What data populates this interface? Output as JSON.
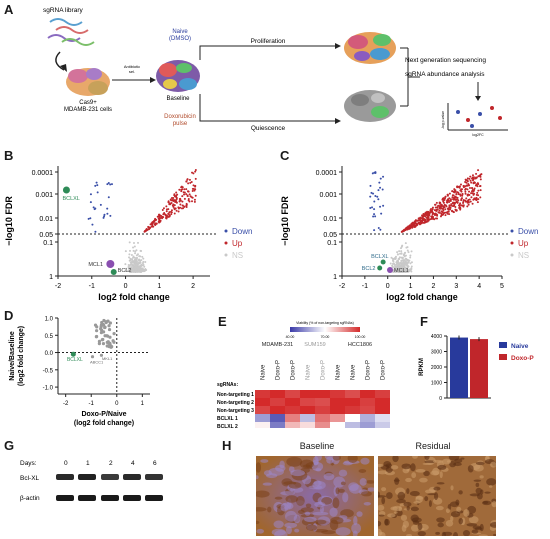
{
  "panels": {
    "A": "A",
    "B": "B",
    "C": "C",
    "D": "D",
    "E": "E",
    "F": "F",
    "G": "G",
    "H": "H"
  },
  "panel_a": {
    "library": "sgRNA library",
    "cells": "Cas9+\nMDAMB-231 cells",
    "antibiotic": "Antibiotic\nsel.",
    "baseline": "Baseline",
    "naive": "Naive\n(DMSO)",
    "doxo": "Doxorubicin\npulse",
    "proliferation": "Proliferation",
    "quiescence": "Quiescence",
    "ngs": "Next generation sequencing",
    "abundance": "sgRNA abundance analysis",
    "mini_ylabel": "-log p-value",
    "mini_xlabel": "log2FC"
  },
  "colors": {
    "down": "#3a4fa8",
    "up": "#c0262b",
    "ns": "#c9c9c9",
    "highlight": "#2e8b57",
    "mcl1": "#8a4fb0",
    "bclxl_green": "#3a8a5a",
    "naive_bar": "#283a9c",
    "doxop_bar": "#c0262b"
  },
  "chart_data": [
    {
      "id": "B",
      "type": "scatter",
      "xlabel": "log2 fold change",
      "ylabel": "−log10 FDR",
      "xlim": [
        -2,
        2.5
      ],
      "x_ticks": [
        "-2",
        "-1",
        "0",
        "1",
        "2"
      ],
      "y_ticks": [
        "0.0001",
        "0.001",
        "0.01",
        "0.05",
        "0.1",
        "1"
      ],
      "y_scale": "log",
      "threshold_label": "0.05",
      "legend": [
        "Down",
        "Up",
        "NS"
      ],
      "annotations": [
        "BCLXL",
        "MCL1",
        "BCL2"
      ]
    },
    {
      "id": "C",
      "type": "scatter",
      "xlabel": "log2 fold change",
      "ylabel": "−log10 FDR",
      "xlim": [
        -2,
        5
      ],
      "x_ticks": [
        "-2",
        "-1",
        "0",
        "1",
        "2",
        "3",
        "4",
        "5"
      ],
      "y_ticks": [
        "0.0001",
        "0.001",
        "0.01",
        "0.05",
        "0.1",
        "1"
      ],
      "y_scale": "log",
      "legend": [
        "Down",
        "Up",
        "NS"
      ],
      "annotations": [
        "BCLXL",
        "BCL2",
        "MCL1"
      ]
    },
    {
      "id": "D",
      "type": "scatter",
      "xlabel": "Doxo-P/Naive\n(log2 fold change)",
      "ylabel": "Naive/Baseline\n(log2 fold change)",
      "x_ticks": [
        "-2",
        "-1",
        "0",
        "1"
      ],
      "y_ticks": [
        "1.0",
        "0.5",
        "0.0",
        "-0.5",
        "-1.0"
      ],
      "annotations": [
        "BCLXL",
        "ABCC1",
        "MKL1"
      ]
    },
    {
      "id": "E",
      "type": "heatmap",
      "colorbar_title": "Viability (% of non-targeting sgRNAs)",
      "colorbar_ticks": [
        "40.00",
        "70.00",
        "100.00"
      ],
      "cell_lines": [
        "MDAMB-231",
        "SUM159",
        "HCC1806"
      ],
      "columns": [
        "Naive",
        "Doxo-P",
        "Doxo-P",
        "Naive",
        "Doxo-P",
        "Naive",
        "Naive",
        "Doxo-P",
        "Doxo-P"
      ],
      "row_header": "sgRNAs:",
      "rows": [
        "Non-targeting 1",
        "Non-targeting 2",
        "Non-targeting 3",
        "BCLXL 1",
        "BCLXL 2"
      ],
      "values": [
        [
          98,
          100,
          96,
          100,
          100,
          98,
          95,
          100,
          97
        ],
        [
          100,
          97,
          100,
          96,
          95,
          100,
          100,
          97,
          100
        ],
        [
          96,
          100,
          98,
          100,
          97,
          100,
          98,
          96,
          100
        ],
        [
          55,
          45,
          88,
          60,
          90,
          85,
          70,
          58,
          65
        ],
        [
          72,
          50,
          80,
          75,
          86,
          70,
          60,
          55,
          62
        ]
      ]
    },
    {
      "id": "F",
      "type": "bar",
      "ylabel": "RPKM",
      "categories": [
        "Naive",
        "Doxo-P"
      ],
      "values": [
        3900,
        3800
      ],
      "y_ticks": [
        "0",
        "1000",
        "2000",
        "3000",
        "4000"
      ],
      "ylim": [
        0,
        4000
      ]
    }
  ],
  "panel_g": {
    "days_label": "Days:",
    "days": [
      "0",
      "1",
      "2",
      "4",
      "6"
    ],
    "row1": "Bcl-XL",
    "row2": "β-actin"
  },
  "panel_h": {
    "left": "Baseline",
    "right": "Residual"
  }
}
